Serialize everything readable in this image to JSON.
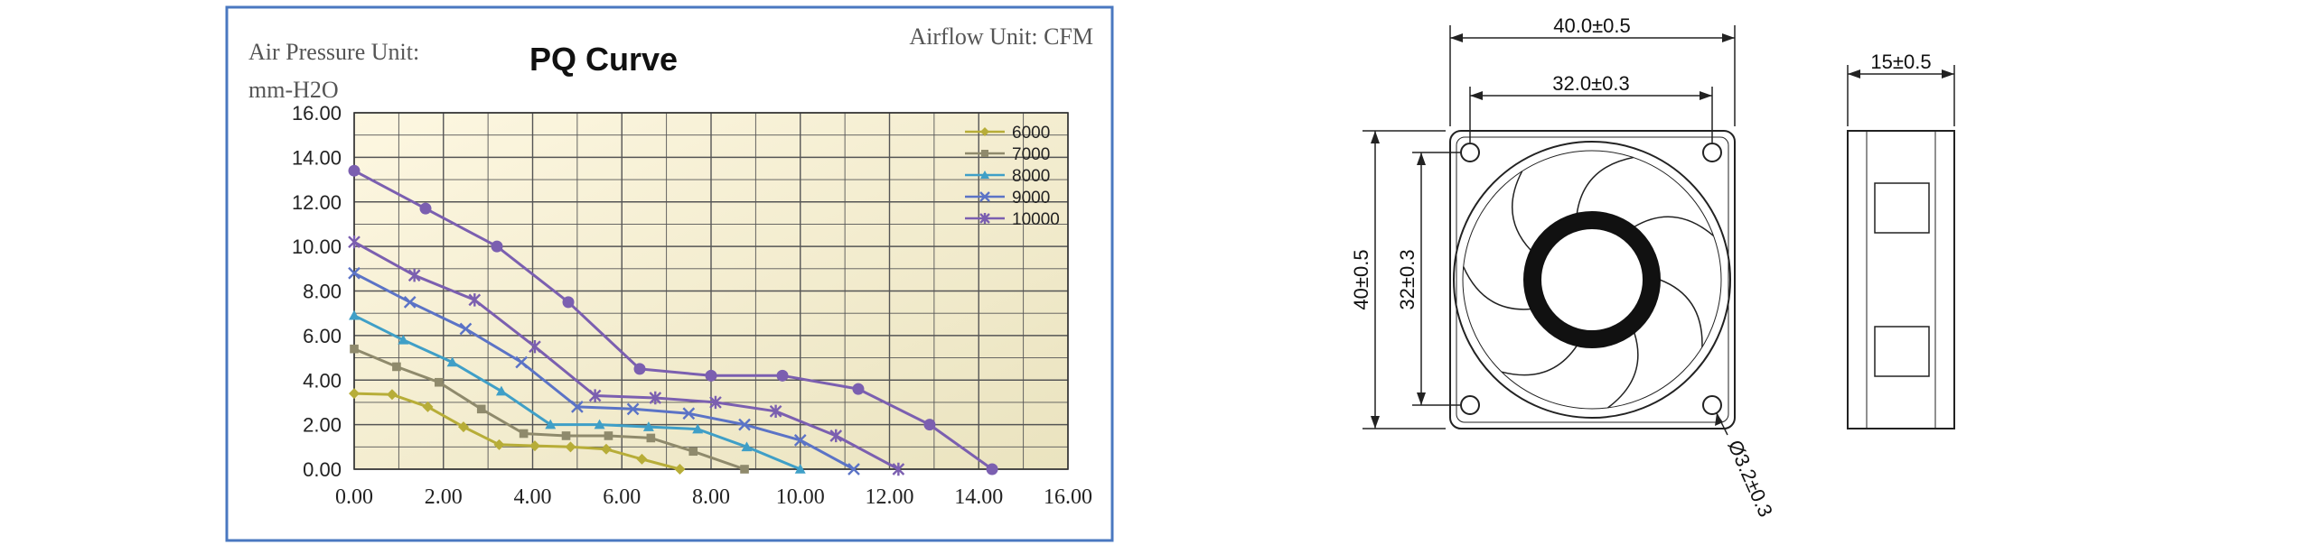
{
  "colors": {
    "frame_border": "#4a78c0",
    "plot_bg_light": "#fdf7e1",
    "plot_bg_dark": "#eae3bf",
    "grid": "#555555",
    "drawing": "#222222"
  },
  "chart": {
    "title": "PQ Curve",
    "pressure_unit_line1": "Air Pressure Unit:",
    "pressure_unit_line2": "mm-H2O",
    "airflow_unit": "Airflow Unit: CFM"
  },
  "chart_data": {
    "type": "line",
    "title": "PQ Curve",
    "xlabel": "Airflow Unit: CFM",
    "ylabel": "Air Pressure Unit: mm-H2O",
    "xlim": [
      0,
      16
    ],
    "ylim": [
      0,
      16
    ],
    "x_ticks": [
      "0.00",
      "2.00",
      "4.00",
      "6.00",
      "8.00",
      "10.00",
      "12.00",
      "14.00",
      "16.00"
    ],
    "y_ticks": [
      "0.00",
      "2.00",
      "4.00",
      "6.00",
      "8.00",
      "10.00",
      "12.00",
      "14.00",
      "16.00"
    ],
    "grid": true,
    "legend": "top-right",
    "series": [
      {
        "name": "6000",
        "color": "#b7ad38",
        "marker": "diamond",
        "points": [
          [
            0,
            3.4
          ],
          [
            0.85,
            3.35
          ],
          [
            1.65,
            2.8
          ],
          [
            2.45,
            1.9
          ],
          [
            3.25,
            1.1
          ],
          [
            4.05,
            1.05
          ],
          [
            4.85,
            1.0
          ],
          [
            5.65,
            0.9
          ],
          [
            6.45,
            0.45
          ],
          [
            7.3,
            0.0
          ]
        ]
      },
      {
        "name": "7000",
        "color": "#8f8a6c",
        "marker": "square",
        "points": [
          [
            0,
            5.4
          ],
          [
            0.95,
            4.6
          ],
          [
            1.9,
            3.9
          ],
          [
            2.85,
            2.7
          ],
          [
            3.8,
            1.6
          ],
          [
            4.75,
            1.5
          ],
          [
            5.7,
            1.5
          ],
          [
            6.65,
            1.4
          ],
          [
            7.6,
            0.8
          ],
          [
            8.75,
            0.0
          ]
        ]
      },
      {
        "name": "8000",
        "color": "#3f9fc7",
        "marker": "triangle",
        "points": [
          [
            0,
            6.9
          ],
          [
            1.1,
            5.8
          ],
          [
            2.2,
            4.8
          ],
          [
            3.3,
            3.5
          ],
          [
            4.4,
            2.0
          ],
          [
            5.5,
            2.0
          ],
          [
            6.6,
            1.9
          ],
          [
            7.7,
            1.8
          ],
          [
            8.8,
            1.0
          ],
          [
            10.0,
            0.0
          ]
        ]
      },
      {
        "name": "9000",
        "color": "#5b73c6",
        "marker": "x",
        "points": [
          [
            0,
            8.8
          ],
          [
            1.25,
            7.5
          ],
          [
            2.5,
            6.3
          ],
          [
            3.75,
            4.8
          ],
          [
            5.0,
            2.8
          ],
          [
            6.25,
            2.7
          ],
          [
            7.5,
            2.5
          ],
          [
            8.75,
            2.0
          ],
          [
            10.0,
            1.3
          ],
          [
            11.2,
            0.0
          ]
        ]
      },
      {
        "name": "10000",
        "color": "#7b5fb0",
        "marker": "star",
        "points": [
          [
            0,
            10.2
          ],
          [
            1.35,
            8.7
          ],
          [
            2.7,
            7.6
          ],
          [
            4.05,
            5.5
          ],
          [
            5.4,
            3.3
          ],
          [
            6.75,
            3.2
          ],
          [
            8.1,
            3.0
          ],
          [
            9.45,
            2.6
          ],
          [
            10.8,
            1.5
          ],
          [
            12.2,
            0.0
          ]
        ]
      },
      {
        "name": "",
        "color": "#7b5fb0",
        "marker": "circle",
        "points": [
          [
            0,
            13.4
          ],
          [
            1.6,
            11.7
          ],
          [
            3.2,
            10.0
          ],
          [
            4.8,
            7.5
          ],
          [
            6.4,
            4.5
          ],
          [
            8.0,
            4.2
          ],
          [
            9.6,
            4.2
          ],
          [
            11.3,
            3.6
          ],
          [
            12.9,
            2.0
          ],
          [
            14.3,
            0.0
          ]
        ]
      }
    ]
  },
  "drawing": {
    "front_view": {
      "outer_width": "40.0±0.5",
      "hole_spacing_width": "32.0±0.3",
      "outer_height": "40±0.5",
      "hole_spacing_height": "32±0.3",
      "hole_diameter": "Ø3.2±0.3"
    },
    "side_view": {
      "thickness": "15±0.5"
    }
  }
}
